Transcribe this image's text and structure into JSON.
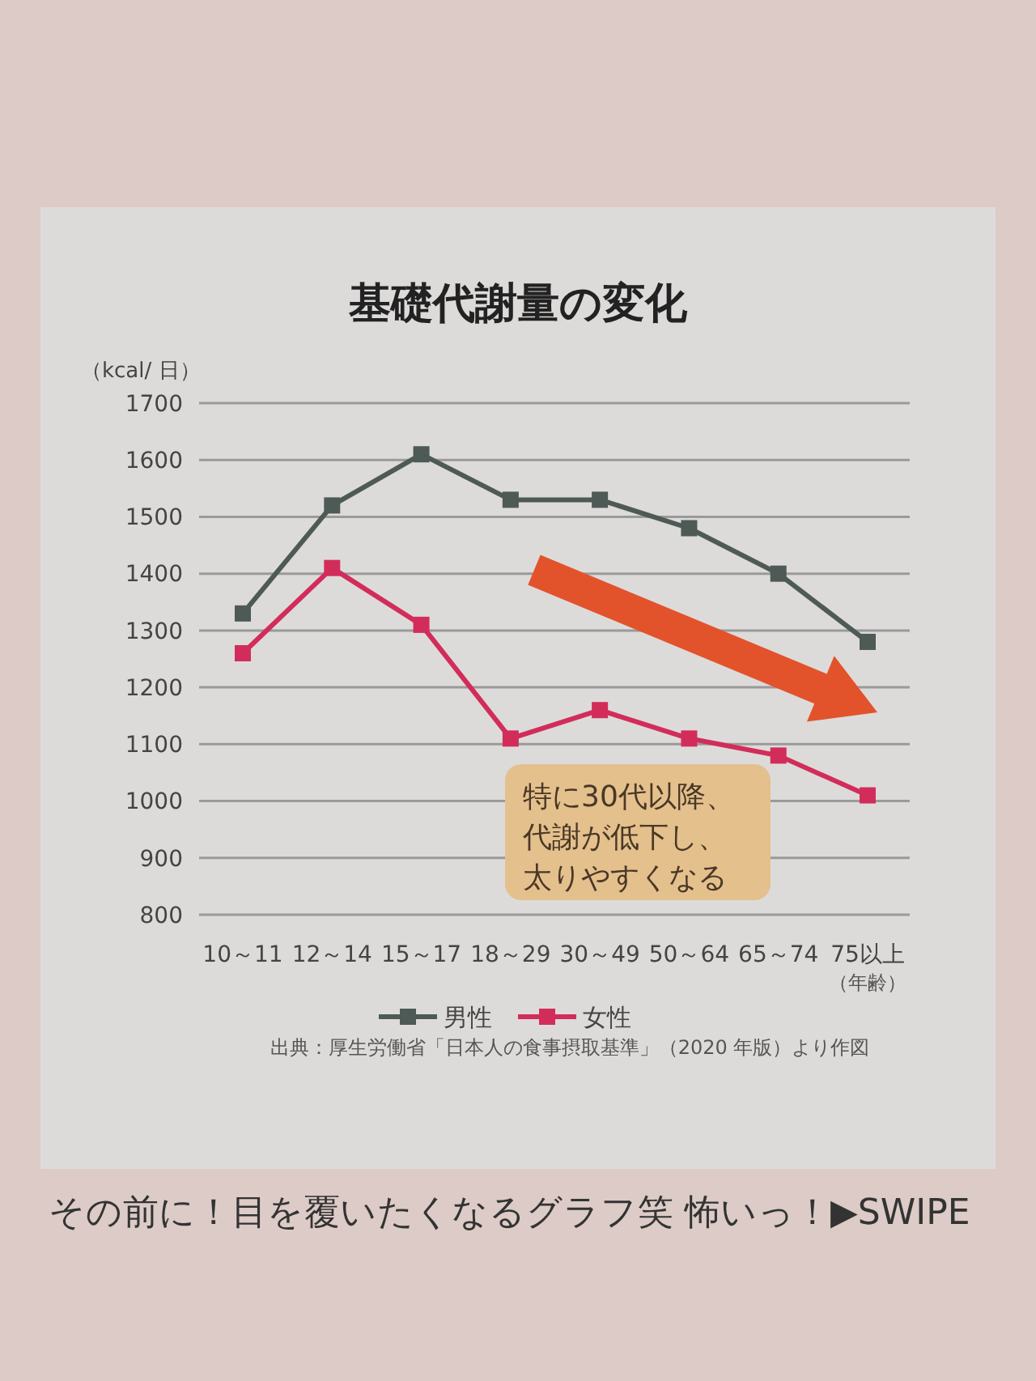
{
  "chart_data": {
    "type": "line",
    "title": "基礎代謝量の変化",
    "ylabel": "（kcal/ 日）",
    "xlabel": "（年齢）",
    "categories": [
      "10～11",
      "12～14",
      "15～17",
      "18～29",
      "30～49",
      "50～64",
      "65～74",
      "75以上"
    ],
    "series": [
      {
        "name": "男性",
        "color": "#4e5a55",
        "values": [
          1330,
          1520,
          1610,
          1530,
          1530,
          1480,
          1400,
          1280
        ]
      },
      {
        "name": "女性",
        "color": "#d22d5a",
        "values": [
          1260,
          1410,
          1310,
          1110,
          1160,
          1110,
          1080,
          1010
        ]
      }
    ],
    "ylim": [
      800,
      1700
    ],
    "yticks": [
      800,
      900,
      1000,
      1100,
      1200,
      1300,
      1400,
      1500,
      1600,
      1700
    ],
    "grid": "y",
    "legend": "bottom",
    "marker": "square",
    "annotations": [
      "特に30代以降、代謝が低下し、太りやすくなる",
      "出典：厚生労働省「日本人の食事摂取基準」（2020 年版）より作図",
      "その前に！目を覆いたくなるグラフ笑 怖いっ！▶SWIPE"
    ]
  }
}
